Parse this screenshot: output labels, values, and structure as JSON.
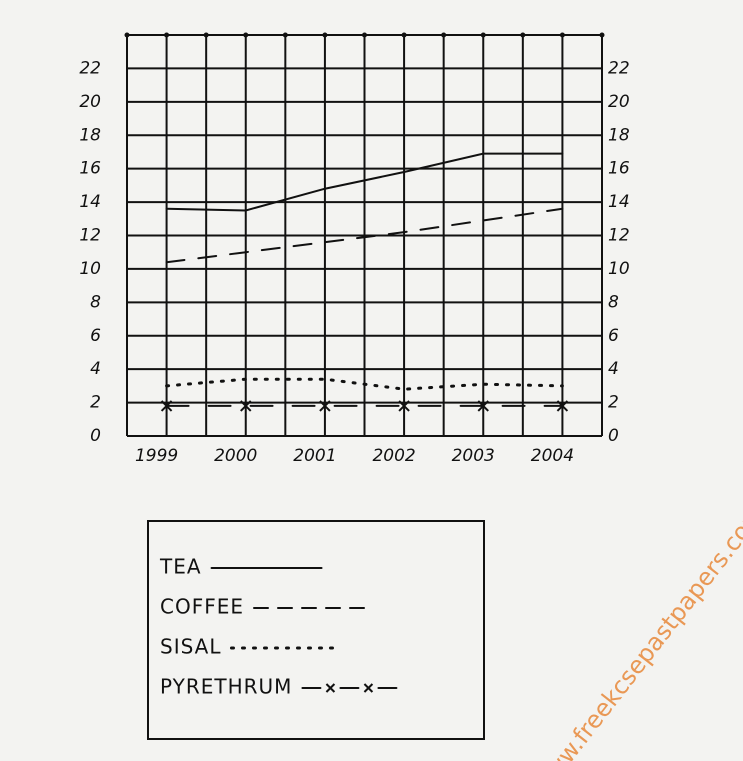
{
  "chart_data": {
    "type": "line",
    "x": [
      1999,
      2000,
      2001,
      2002,
      2003,
      2004
    ],
    "xlim": [
      1998.5,
      2004.5
    ],
    "xticks": [
      1999,
      2000,
      2001,
      2002,
      2003,
      2004
    ],
    "ylim": [
      0,
      24
    ],
    "yticks": [
      0,
      2,
      4,
      6,
      8,
      10,
      12,
      14,
      16,
      18,
      20,
      22
    ],
    "grid": true,
    "series": [
      {
        "name": "TEA",
        "color": "#111111",
        "style": "solid",
        "values": [
          13.6,
          13.5,
          14.8,
          15.8,
          16.9,
          16.9
        ]
      },
      {
        "name": "COFFEE",
        "color": "#111111",
        "style": "dashed",
        "values": [
          10.4,
          11.0,
          11.6,
          12.2,
          12.9,
          13.6
        ]
      },
      {
        "name": "SISAL",
        "color": "#111111",
        "style": "dotted",
        "values": [
          3.0,
          3.4,
          3.4,
          2.8,
          3.1,
          3.0
        ]
      },
      {
        "name": "PYRETHRUM",
        "color": "#111111",
        "style": "x-marked",
        "values": [
          1.8,
          1.8,
          1.8,
          1.8,
          1.8,
          1.8
        ]
      }
    ],
    "watermark": "www.freekcsepastpapers.com"
  }
}
